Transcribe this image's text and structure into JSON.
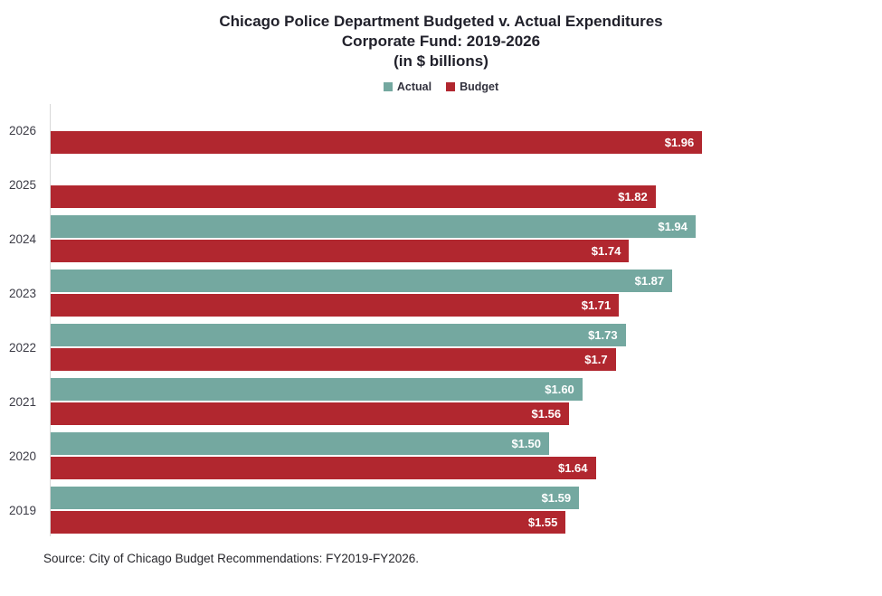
{
  "title": {
    "line1": "Chicago Police Department Budgeted v. Actual Expenditures",
    "line2": "Corporate Fund: 2019-2026",
    "line3": "(in $ billions)"
  },
  "legend": {
    "items": [
      {
        "label": "Actual",
        "color": "#74A8A0"
      },
      {
        "label": "Budget",
        "color": "#B1272F"
      }
    ]
  },
  "axis": {
    "max": 2.5
  },
  "colors": {
    "actual": "#74A8A0",
    "budget": "#B1272F",
    "axis_line": "#D8D8D8",
    "value_text": "#FFFFFF",
    "title_text": "#21212B",
    "year_text": "#3C3C46"
  },
  "rows": [
    {
      "year": "2026",
      "actual": null,
      "actual_label": null,
      "budget": 1.96,
      "budget_label": "$1.96"
    },
    {
      "year": "2025",
      "actual": null,
      "actual_label": null,
      "budget": 1.82,
      "budget_label": "$1.82"
    },
    {
      "year": "2024",
      "actual": 1.94,
      "actual_label": "$1.94",
      "budget": 1.74,
      "budget_label": "$1.74"
    },
    {
      "year": "2023",
      "actual": 1.87,
      "actual_label": "$1.87",
      "budget": 1.71,
      "budget_label": "$1.71"
    },
    {
      "year": "2022",
      "actual": 1.73,
      "actual_label": "$1.73",
      "budget": 1.7,
      "budget_label": "$1.7"
    },
    {
      "year": "2021",
      "actual": 1.6,
      "actual_label": "$1.60",
      "budget": 1.56,
      "budget_label": "$1.56"
    },
    {
      "year": "2020",
      "actual": 1.5,
      "actual_label": "$1.50",
      "budget": 1.64,
      "budget_label": "$1.64"
    },
    {
      "year": "2019",
      "actual": 1.59,
      "actual_label": "$1.59",
      "budget": 1.55,
      "budget_label": "$1.55"
    }
  ],
  "source": "Source: City of Chicago Budget Recommendations: FY2019-FY2026.",
  "chart_data": {
    "type": "bar",
    "orientation": "horizontal",
    "title": "Chicago Police Department Budgeted v. Actual Expenditures",
    "subtitle": "Corporate Fund: 2019-2026",
    "units_note": "(in $ billions)",
    "categories": [
      "2026",
      "2025",
      "2024",
      "2023",
      "2022",
      "2021",
      "2020",
      "2019"
    ],
    "series": [
      {
        "name": "Actual",
        "color": "#74A8A0",
        "values": [
          null,
          null,
          1.94,
          1.87,
          1.73,
          1.6,
          1.5,
          1.59
        ]
      },
      {
        "name": "Budget",
        "color": "#B1272F",
        "values": [
          1.96,
          1.82,
          1.74,
          1.71,
          1.7,
          1.56,
          1.64,
          1.55
        ]
      }
    ],
    "data_labels": [
      "$1.96",
      "$1.82",
      "$1.94",
      "$1.74",
      "$1.87",
      "$1.71",
      "$1.73",
      "$1.7",
      "$1.60",
      "$1.56",
      "$1.50",
      "$1.64",
      "$1.59",
      "$1.55"
    ],
    "xlim": [
      0,
      2.5
    ],
    "grid": false,
    "legend_position": "top",
    "source": "Source: City of Chicago Budget Recommendations: FY2019-FY2026."
  }
}
